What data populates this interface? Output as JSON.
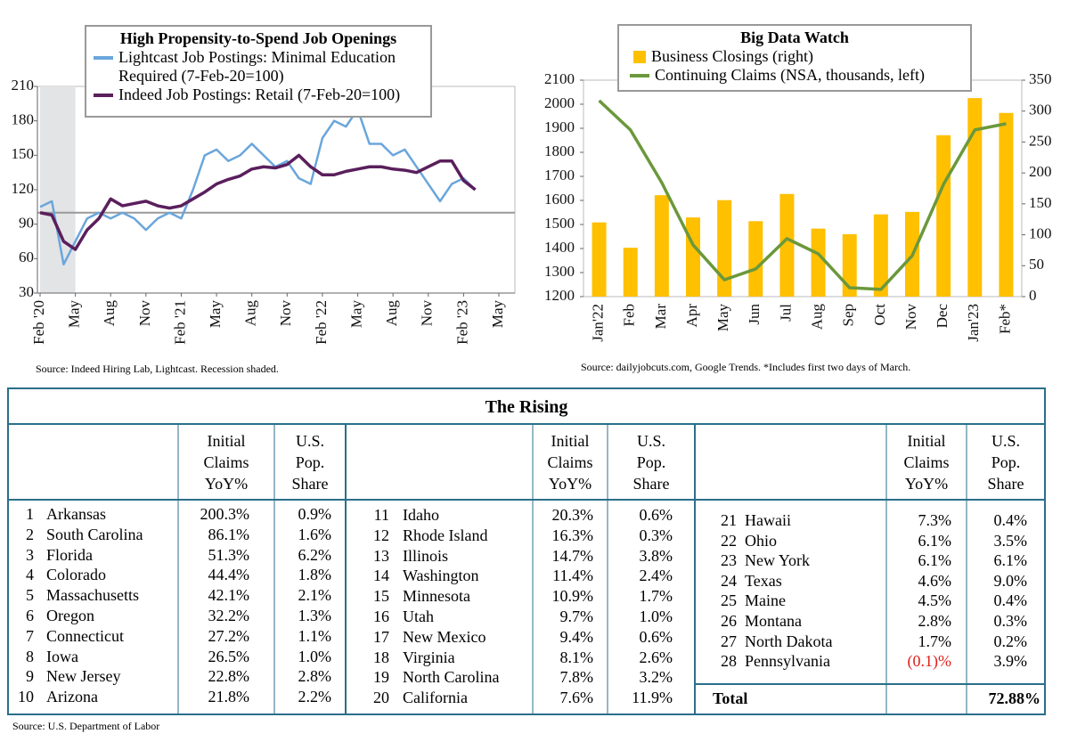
{
  "chart_data": [
    {
      "type": "line",
      "title": "High Propensity-to-Spend Job Openings",
      "source": "Source: Indeed Hiring Lab, Lightcast. Recession shaded.",
      "x": [
        "2020-02",
        "2020-03",
        "2020-04",
        "2020-05",
        "2020-06",
        "2020-07",
        "2020-08",
        "2020-09",
        "2020-10",
        "2020-11",
        "2020-12",
        "2021-01",
        "2021-02",
        "2021-03",
        "2021-04",
        "2021-05",
        "2021-06",
        "2021-07",
        "2021-08",
        "2021-09",
        "2021-10",
        "2021-11",
        "2021-12",
        "2022-01",
        "2022-02",
        "2022-03",
        "2022-04",
        "2022-05",
        "2022-06",
        "2022-07",
        "2022-08",
        "2022-09",
        "2022-10",
        "2022-11",
        "2022-12",
        "2023-01",
        "2023-02",
        "2023-03"
      ],
      "series": [
        {
          "name": "Lightcast Job Postings: Minimal Education Required (7-Feb-20=100)",
          "color": "#6aa6dc",
          "values": [
            105,
            110,
            55,
            75,
            95,
            100,
            95,
            100,
            95,
            85,
            95,
            100,
            95,
            120,
            150,
            155,
            145,
            150,
            160,
            150,
            140,
            145,
            130,
            125,
            165,
            180,
            175,
            190,
            160,
            160,
            150,
            155,
            140,
            125,
            110,
            125,
            130,
            120
          ]
        },
        {
          "name": "Indeed Job Postings: Retail (7-Feb-20=100)",
          "color": "#5a1f5c",
          "values": [
            100,
            98,
            75,
            68,
            85,
            95,
            112,
            106,
            108,
            110,
            106,
            104,
            106,
            112,
            118,
            125,
            129,
            132,
            138,
            140,
            139,
            142,
            150,
            140,
            133,
            133,
            136,
            138,
            140,
            140,
            138,
            137,
            135,
            140,
            145,
            145,
            128,
            120
          ]
        }
      ],
      "xlim": [
        "2020-02",
        "2023-05"
      ],
      "xticks": [
        {
          "value": "2020-02",
          "label": "Feb '20"
        },
        {
          "value": "2020-05",
          "label": "May"
        },
        {
          "value": "2020-08",
          "label": "Aug"
        },
        {
          "value": "2020-11",
          "label": "Nov"
        },
        {
          "value": "2021-02",
          "label": "Feb '21"
        },
        {
          "value": "2021-05",
          "label": "May"
        },
        {
          "value": "2021-08",
          "label": "Aug"
        },
        {
          "value": "2021-11",
          "label": "Nov"
        },
        {
          "value": "2022-02",
          "label": "Feb '22"
        },
        {
          "value": "2022-05",
          "label": "May"
        },
        {
          "value": "2022-08",
          "label": "Aug"
        },
        {
          "value": "2022-11",
          "label": "Nov"
        },
        {
          "value": "2023-02",
          "label": "Feb '23"
        },
        {
          "value": "2023-05",
          "label": "May"
        }
      ],
      "ylim": [
        30,
        210
      ],
      "yticks": [
        30,
        60,
        90,
        120,
        150,
        180,
        210
      ],
      "reference_line": 100,
      "shaded_span": [
        "2020-02",
        "2020-05"
      ]
    },
    {
      "type": "combo",
      "title": "Big Data Watch",
      "source": "Source: dailyjobcuts.com, Google Trends. *Includes first two days of March.",
      "categories": [
        "Jan'22",
        "Feb",
        "Mar",
        "Apr",
        "May",
        "Jun",
        "Jul",
        "Aug",
        "Sep",
        "Oct",
        "Nov",
        "Dec",
        "Jan'23",
        "Feb*"
      ],
      "series": [
        {
          "name": "Business Closings (right)",
          "type": "bar",
          "axis": "y2",
          "color": "#ffc000",
          "values": [
            120,
            79,
            164,
            128,
            156,
            122,
            166,
            110,
            101,
            133,
            137,
            261,
            321,
            297
          ]
        },
        {
          "name": "Continuing Claims (NSA, thousands, left)",
          "type": "line",
          "color": "#6b983b",
          "values": [
            2015,
            1893,
            1674,
            1415,
            1270,
            1315,
            1441,
            1378,
            1237,
            1230,
            1370,
            1667,
            1893,
            1919
          ]
        }
      ],
      "ylim": [
        1200,
        2100
      ],
      "yticks": [
        1200,
        1300,
        1400,
        1500,
        1600,
        1700,
        1800,
        1900,
        2000,
        2100
      ],
      "y2lim": [
        0,
        350
      ],
      "y2ticks": [
        0,
        50,
        100,
        150,
        200,
        250,
        300,
        350
      ]
    }
  ],
  "table": {
    "title": "The Rising",
    "groups": [
      {
        "headers": [
          "Initial Claims YoY%",
          "U.S. Pop. Share"
        ],
        "rows": [
          [
            "1",
            "Arkansas",
            "200.3%",
            "0.9%"
          ],
          [
            "2",
            "South Carolina",
            "86.1%",
            "1.6%"
          ],
          [
            "3",
            "Florida",
            "51.3%",
            "6.2%"
          ],
          [
            "4",
            "Colorado",
            "44.4%",
            "1.8%"
          ],
          [
            "5",
            "Massachusetts",
            "42.1%",
            "2.1%"
          ],
          [
            "6",
            "Oregon",
            "32.2%",
            "1.3%"
          ],
          [
            "7",
            "Connecticut",
            "27.2%",
            "1.1%"
          ],
          [
            "8",
            "Iowa",
            "26.5%",
            "1.0%"
          ],
          [
            "9",
            "New Jersey",
            "22.8%",
            "2.8%"
          ],
          [
            "10",
            "Arizona",
            "21.8%",
            "2.2%"
          ]
        ]
      },
      {
        "headers": [
          "Initial Claims YoY%",
          "U.S. Pop. Share"
        ],
        "rows": [
          [
            "11",
            "Idaho",
            "20.3%",
            "0.6%"
          ],
          [
            "12",
            "Rhode Island",
            "16.3%",
            "0.3%"
          ],
          [
            "13",
            "Illinois",
            "14.7%",
            "3.8%"
          ],
          [
            "14",
            "Washington",
            "11.4%",
            "2.4%"
          ],
          [
            "15",
            "Minnesota",
            "10.9%",
            "1.7%"
          ],
          [
            "16",
            "Utah",
            "9.7%",
            "1.0%"
          ],
          [
            "17",
            "New Mexico",
            "9.4%",
            "0.6%"
          ],
          [
            "18",
            "Virginia",
            "8.1%",
            "2.6%"
          ],
          [
            "19",
            "North Carolina",
            "7.8%",
            "3.2%"
          ],
          [
            "20",
            "California",
            "7.6%",
            "11.9%"
          ]
        ]
      },
      {
        "headers": [
          "Initial Claims YoY%",
          "U.S. Pop. Share"
        ],
        "rows": [
          [
            "21",
            "Hawaii",
            "7.3%",
            "0.4%"
          ],
          [
            "22",
            "Ohio",
            "6.1%",
            "3.5%"
          ],
          [
            "23",
            "New York",
            "6.1%",
            "6.1%"
          ],
          [
            "24",
            "Texas",
            "4.6%",
            "9.0%"
          ],
          [
            "25",
            "Maine",
            "4.5%",
            "0.4%"
          ],
          [
            "26",
            "Montana",
            "2.8%",
            "0.3%"
          ],
          [
            "27",
            "North Dakota",
            "1.7%",
            "0.2%"
          ],
          [
            "28",
            "Pennsylvania",
            "(0.1)%",
            "3.9%"
          ]
        ]
      }
    ],
    "total": {
      "label": "Total",
      "value": "72.88%"
    },
    "source": "Source: U.S. Department of Labor"
  }
}
